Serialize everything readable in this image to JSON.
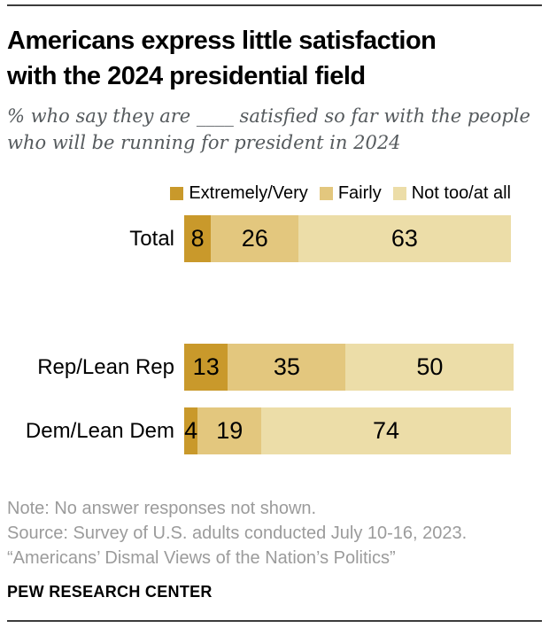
{
  "header": {
    "title": "Americans express little satisfaction\nwith the 2024 presidential field",
    "subtitle": "% who say they are ____ satisfied so far with the people\nwho will be running for president in 2024"
  },
  "chart_data": {
    "type": "bar",
    "orientation": "horizontal",
    "stacked": true,
    "categories": [
      "Total",
      "Rep/Lean Rep",
      "Dem/Lean Dem"
    ],
    "series": [
      {
        "name": "Extremely/Very",
        "color": "#C9992B",
        "values": [
          8,
          13,
          4
        ]
      },
      {
        "name": "Fairly",
        "color": "#E3C77E",
        "values": [
          26,
          35,
          19
        ]
      },
      {
        "name": "Not too/at all",
        "color": "#ECDDA8",
        "values": [
          63,
          50,
          74
        ]
      }
    ],
    "title": "Americans express little satisfaction with the 2024 presidential field",
    "subtitle": "% who say they are ____ satisfied so far with the people who will be running for president in 2024",
    "xlabel": "",
    "ylabel": "",
    "xlim": [
      0,
      100
    ],
    "value_labels": "inside-center",
    "legend_position": "top",
    "grid": false
  },
  "footer": {
    "note": "Note: No answer responses not shown.",
    "source": "Source: Survey of U.S. adults conducted July 10-16, 2023.",
    "report": "“Americans’ Dismal Views of the Nation’s Politics”",
    "brand": "PEW RESEARCH CENTER"
  }
}
